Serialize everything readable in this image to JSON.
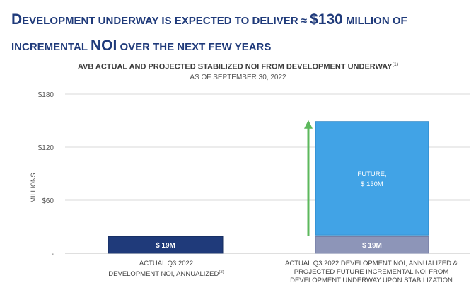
{
  "headline": {
    "line1": [
      {
        "text": "D",
        "size": "big"
      },
      {
        "text": "EVELOPMENT UNDERWAY IS EXPECTED TO DELIVER ≈ ",
        "size": "small"
      },
      {
        "text": "$130",
        "size": "big"
      },
      {
        "text": " MILLION OF",
        "size": "small"
      }
    ],
    "line2": [
      {
        "text": "INCREMENTAL ",
        "size": "small"
      },
      {
        "text": "NOI",
        "size": "big"
      },
      {
        "text": " OVER THE NEXT FEW YEARS",
        "size": "small"
      }
    ]
  },
  "colors": {
    "headline": "#1f3a7a",
    "bar_actual": "#1f3a7a",
    "bar_base": "#8d95b8",
    "bar_future": "#41a3e6",
    "arrow": "#5cb85c",
    "grid": "#d9d9d9"
  },
  "chart_data": {
    "type": "bar",
    "title": "AVB ACTUAL AND PROJECTED STABILIZED NOI FROM DEVELOPMENT UNDERWAY",
    "title_footnote": "(1)",
    "subtitle": "AS OF SEPTEMBER 30, 2022",
    "ylabel": "MILLIONS",
    "ylim": [
      0,
      180
    ],
    "yticks": [
      {
        "value": 0,
        "label": "-"
      },
      {
        "value": 60,
        "label": "$60"
      },
      {
        "value": 120,
        "label": "$120"
      },
      {
        "value": 180,
        "label": "$180"
      }
    ],
    "grid": true,
    "categories": [
      {
        "lines": [
          "ACTUAL Q3 2022",
          "DEVELOPMENT NOI, ANNUALIZED"
        ],
        "footnote": "(2)"
      },
      {
        "lines": [
          "ACTUAL Q3 2022 DEVELOPMENT NOI, ANNUALIZED &",
          "PROJECTED FUTURE INCREMENTAL NOI FROM",
          "DEVELOPMENT UNDERWAY UPON STABILIZATION"
        ],
        "footnote": ""
      }
    ],
    "series": [
      {
        "name": "Actual",
        "values": [
          19,
          19
        ],
        "labels": [
          "$ 19M",
          "$ 19M"
        ]
      },
      {
        "name": "Future",
        "values": [
          0,
          130
        ],
        "labels": [
          "",
          "FUTURE,\n$ 130M"
        ]
      }
    ],
    "arrow": {
      "category": 1,
      "from": 19,
      "to": 149
    }
  }
}
